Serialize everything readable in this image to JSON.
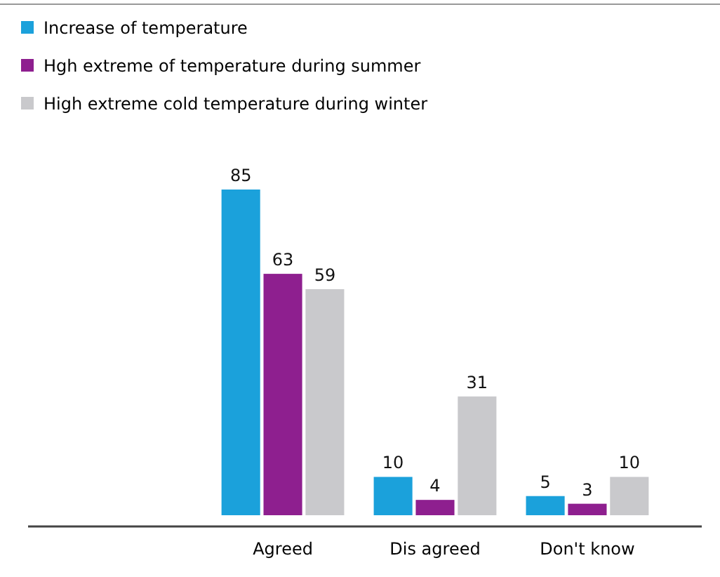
{
  "chart_data": {
    "type": "bar",
    "categories": [
      "Agreed",
      "Dis agreed",
      "Don't know"
    ],
    "series": [
      {
        "name": "Increase of temperature",
        "color": "#1ba1db",
        "values": [
          85,
          10,
          5
        ]
      },
      {
        "name": "Hgh extreme of temperature during summer",
        "color": "#8e1f8f",
        "values": [
          63,
          4,
          3
        ]
      },
      {
        "name": "High extreme cold temperature during winter",
        "color": "#c9c9cc",
        "values": [
          59,
          31,
          10
        ]
      }
    ],
    "data_labels": true,
    "legend": "top left"
  }
}
